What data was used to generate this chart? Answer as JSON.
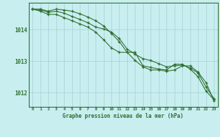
{
  "title": "Graphe pression niveau de la mer (hPa)",
  "background_color": "#c8eef0",
  "grid_color": "#aad4d8",
  "line_color": "#2d6e2d",
  "xlim": [
    -0.5,
    23.5
  ],
  "ylim": [
    1011.55,
    1014.85
  ],
  "yticks": [
    1012,
    1013,
    1014
  ],
  "xticks": [
    0,
    1,
    2,
    3,
    4,
    5,
    6,
    7,
    8,
    9,
    10,
    11,
    12,
    13,
    14,
    15,
    16,
    17,
    18,
    19,
    20,
    21,
    22,
    23
  ],
  "series1": [
    1014.65,
    1014.65,
    1014.58,
    1014.65,
    1014.62,
    1014.58,
    1014.5,
    1014.4,
    1014.28,
    1014.12,
    1013.88,
    1013.62,
    1013.28,
    1013.28,
    1012.85,
    1012.8,
    1012.75,
    1012.72,
    1012.9,
    1012.9,
    1012.75,
    1012.5,
    1012.05,
    1011.78
  ],
  "series2": [
    1014.65,
    1014.62,
    1014.55,
    1014.58,
    1014.52,
    1014.42,
    1014.32,
    1014.22,
    1014.08,
    1014.02,
    1013.92,
    1013.72,
    1013.38,
    1013.22,
    1013.08,
    1013.02,
    1012.92,
    1012.82,
    1012.85,
    1012.88,
    1012.78,
    1012.62,
    1012.18,
    1011.82
  ],
  "series3": [
    1014.65,
    1014.58,
    1014.48,
    1014.48,
    1014.38,
    1014.28,
    1014.18,
    1014.08,
    1013.92,
    1013.68,
    1013.42,
    1013.28,
    1013.28,
    1013.02,
    1012.82,
    1012.72,
    1012.72,
    1012.68,
    1012.72,
    1012.85,
    1012.85,
    1012.65,
    1012.32,
    1011.75
  ]
}
